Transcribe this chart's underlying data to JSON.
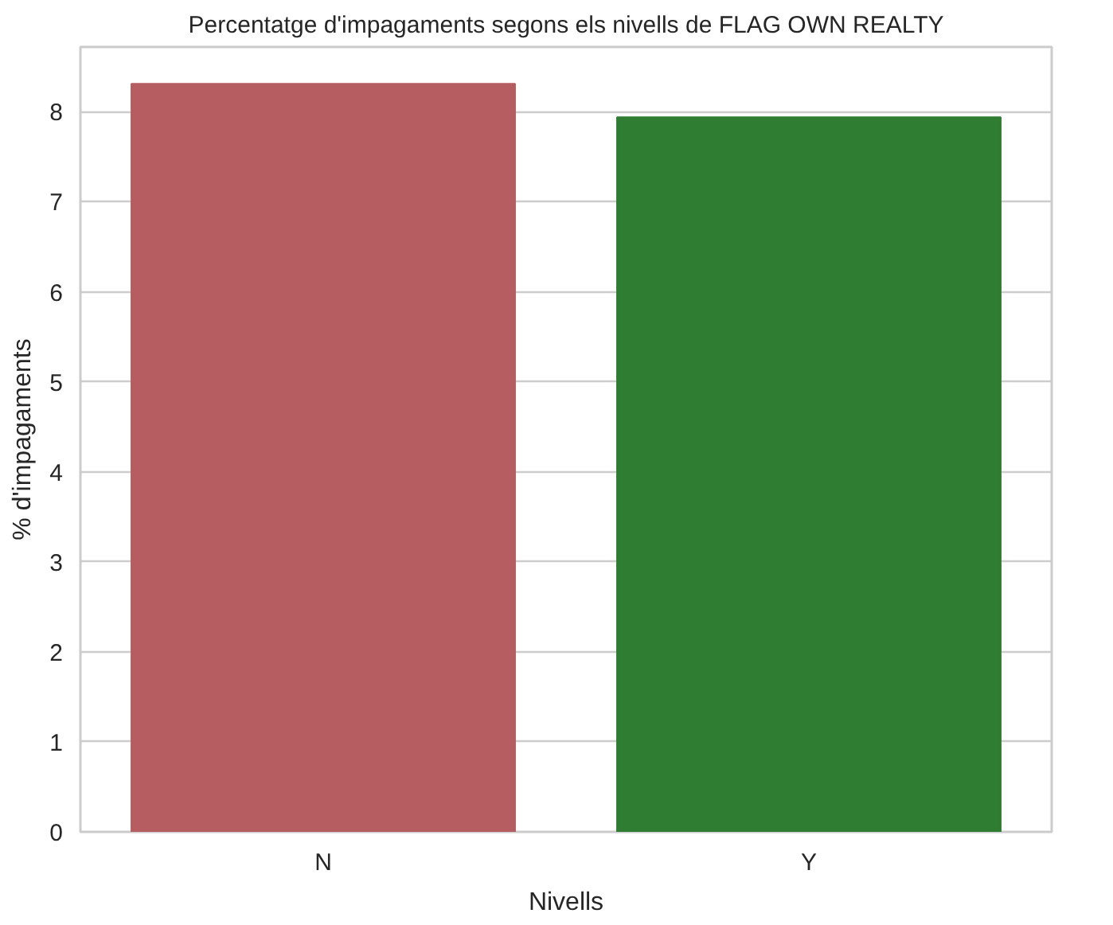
{
  "chart_data": {
    "type": "bar",
    "title": "Percentatge d'impagaments segons els nivells de FLAG OWN REALTY",
    "xlabel": "Nivells",
    "ylabel": "% d'impagaments",
    "categories": [
      "N",
      "Y"
    ],
    "values": [
      8.31,
      7.94
    ],
    "colors": [
      "#b55d60",
      "#2e7d32"
    ],
    "ylim": [
      0,
      8.72
    ],
    "yticks": [
      0,
      1,
      2,
      3,
      4,
      5,
      6,
      7,
      8
    ],
    "grid": "y"
  }
}
